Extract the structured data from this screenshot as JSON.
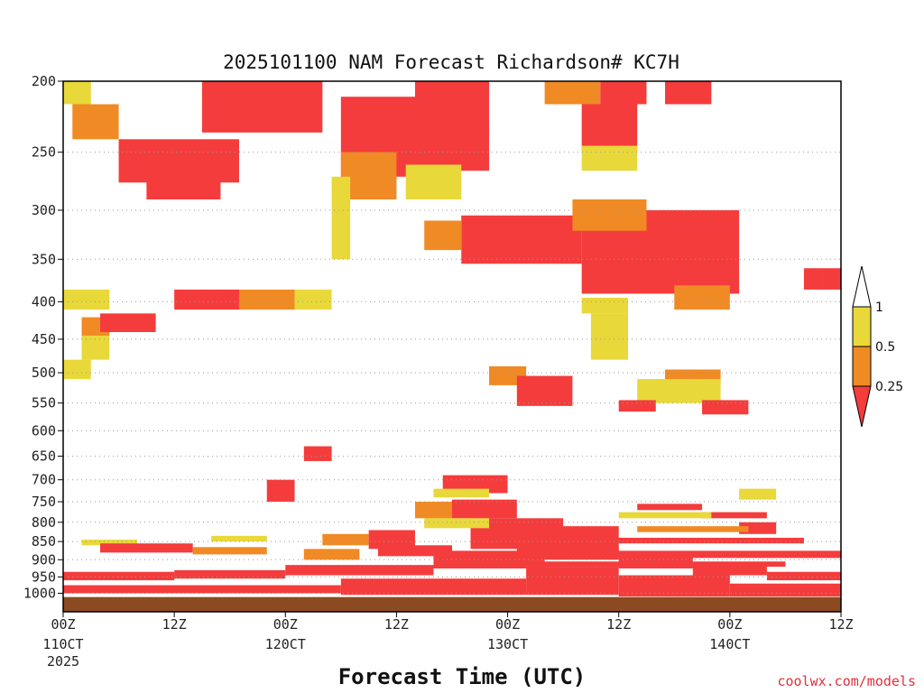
{
  "chart_data": {
    "type": "heatmap",
    "title": "2025101100 NAM Forecast Richardson# KC7H",
    "xlabel": "Forecast Time (UTC)",
    "credit": "coolwx.com/models",
    "y_ticks": [
      "200",
      "250",
      "300",
      "350",
      "400",
      "450",
      "500",
      "550",
      "600",
      "650",
      "700",
      "750",
      "800",
      "850",
      "900",
      "950",
      "1000"
    ],
    "y_tick_values": [
      200,
      250,
      300,
      350,
      400,
      450,
      500,
      550,
      600,
      650,
      700,
      750,
      800,
      850,
      900,
      950,
      1000
    ],
    "ylim": [
      200,
      1060
    ],
    "x_ticks": [
      {
        "h": 0,
        "label": "00Z",
        "date": "110CT",
        "year": "2025"
      },
      {
        "h": 12,
        "label": "12Z",
        "date": "",
        "year": ""
      },
      {
        "h": 24,
        "label": "00Z",
        "date": "120CT",
        "year": ""
      },
      {
        "h": 36,
        "label": "12Z",
        "date": "",
        "year": ""
      },
      {
        "h": 48,
        "label": "00Z",
        "date": "130CT",
        "year": ""
      },
      {
        "h": 60,
        "label": "12Z",
        "date": "",
        "year": ""
      },
      {
        "h": 72,
        "label": "00Z",
        "date": "140CT",
        "year": ""
      },
      {
        "h": 84,
        "label": "12Z",
        "date": "",
        "year": ""
      }
    ],
    "xlim": [
      0,
      84
    ],
    "colorbar": {
      "labels": [
        "1",
        "0.5",
        "0.25"
      ],
      "colors": {
        "high": "#ffffff",
        "mid": "#e8d83a",
        "low": "#f08a24",
        "min": "#f43c3c"
      }
    },
    "colors": {
      "red": "#f43c3c",
      "orange": "#f08a24",
      "yellow": "#e8d83a",
      "ground": "#8b4a20",
      "grid": "#999999"
    },
    "blocks": [
      {
        "c": "red",
        "x0": 15,
        "x1": 28,
        "p0": 200,
        "p1": 235
      },
      {
        "c": "red",
        "x0": 6,
        "x1": 19,
        "p0": 240,
        "p1": 275
      },
      {
        "c": "red",
        "x0": 9,
        "x1": 17,
        "p0": 270,
        "p1": 290
      },
      {
        "c": "orange",
        "x0": 1,
        "x1": 6,
        "p0": 215,
        "p1": 240
      },
      {
        "c": "yellow",
        "x0": 0,
        "x1": 3,
        "p0": 200,
        "p1": 215
      },
      {
        "c": "red",
        "x0": 30,
        "x1": 42,
        "p0": 210,
        "p1": 270
      },
      {
        "c": "orange",
        "x0": 30,
        "x1": 36,
        "p0": 250,
        "p1": 290
      },
      {
        "c": "yellow",
        "x0": 29,
        "x1": 31,
        "p0": 270,
        "p1": 350
      },
      {
        "c": "red",
        "x0": 38,
        "x1": 46,
        "p0": 200,
        "p1": 240
      },
      {
        "c": "red",
        "x0": 41,
        "x1": 46,
        "p0": 230,
        "p1": 265
      },
      {
        "c": "yellow",
        "x0": 37,
        "x1": 43,
        "p0": 260,
        "p1": 290
      },
      {
        "c": "red",
        "x0": 43,
        "x1": 56,
        "p0": 305,
        "p1": 355
      },
      {
        "c": "orange",
        "x0": 39,
        "x1": 43,
        "p0": 310,
        "p1": 340
      },
      {
        "c": "red",
        "x0": 56,
        "x1": 73,
        "p0": 300,
        "p1": 390
      },
      {
        "c": "orange",
        "x0": 55,
        "x1": 63,
        "p0": 290,
        "p1": 320
      },
      {
        "c": "red",
        "x0": 58,
        "x1": 63,
        "p0": 200,
        "p1": 215
      },
      {
        "c": "orange",
        "x0": 52,
        "x1": 58,
        "p0": 200,
        "p1": 215
      },
      {
        "c": "red",
        "x0": 56,
        "x1": 62,
        "p0": 215,
        "p1": 250
      },
      {
        "c": "yellow",
        "x0": 56,
        "x1": 62,
        "p0": 245,
        "p1": 265
      },
      {
        "c": "red",
        "x0": 65,
        "x1": 70,
        "p0": 200,
        "p1": 215
      },
      {
        "c": "orange",
        "x0": 66,
        "x1": 72,
        "p0": 380,
        "p1": 410
      },
      {
        "c": "red",
        "x0": 80,
        "x1": 82,
        "p0": 360,
        "p1": 385
      },
      {
        "c": "red",
        "x0": 82,
        "x1": 84,
        "p0": 360,
        "p1": 385
      },
      {
        "c": "red",
        "x0": 12,
        "x1": 19,
        "p0": 385,
        "p1": 410
      },
      {
        "c": "orange",
        "x0": 19,
        "x1": 25,
        "p0": 385,
        "p1": 410
      },
      {
        "c": "yellow",
        "x0": 25,
        "x1": 29,
        "p0": 385,
        "p1": 410
      },
      {
        "c": "yellow",
        "x0": 0,
        "x1": 5,
        "p0": 385,
        "p1": 410
      },
      {
        "c": "orange",
        "x0": 2,
        "x1": 5,
        "p0": 420,
        "p1": 445
      },
      {
        "c": "red",
        "x0": 4,
        "x1": 10,
        "p0": 415,
        "p1": 440
      },
      {
        "c": "yellow",
        "x0": 2,
        "x1": 5,
        "p0": 445,
        "p1": 480
      },
      {
        "c": "yellow",
        "x0": 0,
        "x1": 3,
        "p0": 480,
        "p1": 510
      },
      {
        "c": "yellow",
        "x0": 56,
        "x1": 61,
        "p0": 395,
        "p1": 415
      },
      {
        "c": "yellow",
        "x0": 57,
        "x1": 61,
        "p0": 415,
        "p1": 480
      },
      {
        "c": "orange",
        "x0": 46,
        "x1": 50,
        "p0": 490,
        "p1": 520
      },
      {
        "c": "red",
        "x0": 49,
        "x1": 55,
        "p0": 505,
        "p1": 555
      },
      {
        "c": "orange",
        "x0": 65,
        "x1": 71,
        "p0": 495,
        "p1": 520
      },
      {
        "c": "yellow",
        "x0": 62,
        "x1": 71,
        "p0": 510,
        "p1": 550
      },
      {
        "c": "red",
        "x0": 60,
        "x1": 64,
        "p0": 545,
        "p1": 565
      },
      {
        "c": "red",
        "x0": 69,
        "x1": 74,
        "p0": 545,
        "p1": 570
      },
      {
        "c": "red",
        "x0": 26,
        "x1": 29,
        "p0": 630,
        "p1": 660
      },
      {
        "c": "red",
        "x0": 22,
        "x1": 25,
        "p0": 700,
        "p1": 750
      },
      {
        "c": "red",
        "x0": 41,
        "x1": 48,
        "p0": 690,
        "p1": 730
      },
      {
        "c": "red",
        "x0": 42,
        "x1": 49,
        "p0": 745,
        "p1": 790
      },
      {
        "c": "orange",
        "x0": 38,
        "x1": 42,
        "p0": 750,
        "p1": 790
      },
      {
        "c": "yellow",
        "x0": 40,
        "x1": 46,
        "p0": 720,
        "p1": 740
      },
      {
        "c": "yellow",
        "x0": 73,
        "x1": 77,
        "p0": 720,
        "p1": 745
      },
      {
        "c": "red",
        "x0": 62,
        "x1": 69,
        "p0": 755,
        "p1": 770
      },
      {
        "c": "red",
        "x0": 69,
        "x1": 76,
        "p0": 775,
        "p1": 790
      },
      {
        "c": "red",
        "x0": 73,
        "x1": 77,
        "p0": 800,
        "p1": 830
      },
      {
        "c": "orange",
        "x0": 28,
        "x1": 33,
        "p0": 830,
        "p1": 860
      },
      {
        "c": "orange",
        "x0": 26,
        "x1": 32,
        "p0": 870,
        "p1": 900
      },
      {
        "c": "red",
        "x0": 33,
        "x1": 38,
        "p0": 820,
        "p1": 870
      },
      {
        "c": "red",
        "x0": 34,
        "x1": 42,
        "p0": 860,
        "p1": 890
      },
      {
        "c": "red",
        "x0": 44,
        "x1": 54,
        "p0": 790,
        "p1": 870
      },
      {
        "c": "red",
        "x0": 49,
        "x1": 60,
        "p0": 810,
        "p1": 880
      },
      {
        "c": "yellow",
        "x0": 39,
        "x1": 46,
        "p0": 790,
        "p1": 815
      },
      {
        "c": "yellow",
        "x0": 2,
        "x1": 8,
        "p0": 845,
        "p1": 860
      },
      {
        "c": "red",
        "x0": 4,
        "x1": 14,
        "p0": 855,
        "p1": 880
      },
      {
        "c": "orange",
        "x0": 14,
        "x1": 22,
        "p0": 865,
        "p1": 885
      },
      {
        "c": "yellow",
        "x0": 16,
        "x1": 22,
        "p0": 835,
        "p1": 850
      },
      {
        "c": "red",
        "x0": 0,
        "x1": 12,
        "p0": 935,
        "p1": 960
      },
      {
        "c": "red",
        "x0": 12,
        "x1": 24,
        "p0": 930,
        "p1": 955
      },
      {
        "c": "red",
        "x0": 24,
        "x1": 40,
        "p0": 915,
        "p1": 945
      },
      {
        "c": "red",
        "x0": 40,
        "x1": 52,
        "p0": 885,
        "p1": 925
      },
      {
        "c": "red",
        "x0": 52,
        "x1": 60,
        "p0": 860,
        "p1": 900
      },
      {
        "c": "red",
        "x0": 60,
        "x1": 68,
        "p0": 885,
        "p1": 925
      },
      {
        "c": "red",
        "x0": 68,
        "x1": 76,
        "p0": 910,
        "p1": 945
      },
      {
        "c": "red",
        "x0": 76,
        "x1": 84,
        "p0": 935,
        "p1": 960
      },
      {
        "c": "red",
        "x0": 0,
        "x1": 30,
        "p0": 975,
        "p1": 1000
      },
      {
        "c": "red",
        "x0": 30,
        "x1": 50,
        "p0": 955,
        "p1": 1005
      },
      {
        "c": "red",
        "x0": 50,
        "x1": 60,
        "p0": 920,
        "p1": 1005
      },
      {
        "c": "red",
        "x0": 60,
        "x1": 72,
        "p0": 945,
        "p1": 1010
      },
      {
        "c": "red",
        "x0": 72,
        "x1": 84,
        "p0": 970,
        "p1": 1010
      }
    ],
    "strips": [
      {
        "c": "red",
        "x0": 40,
        "x1": 84,
        "p0": 875,
        "p1": 895
      },
      {
        "c": "red",
        "x0": 48,
        "x1": 78,
        "p0": 905,
        "p1": 920
      },
      {
        "c": "yellow",
        "x0": 60,
        "x1": 70,
        "p0": 775,
        "p1": 790
      },
      {
        "c": "orange",
        "x0": 62,
        "x1": 74,
        "p0": 810,
        "p1": 825
      },
      {
        "c": "red",
        "x0": 44,
        "x1": 80,
        "p0": 840,
        "p1": 855
      }
    ]
  }
}
